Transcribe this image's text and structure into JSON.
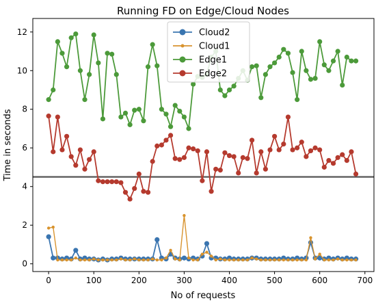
{
  "chart_data": {
    "type": "line",
    "title": "Running FD on Edge/Cloud Nodes",
    "xlabel": "No of requests",
    "ylabel": "Time in seconds",
    "xlim": [
      -35,
      720
    ],
    "ylim": [
      -0.4,
      12.7
    ],
    "xticks": [
      "0",
      "100",
      "200",
      "300",
      "400",
      "500",
      "600",
      "700"
    ],
    "yticks": [
      "0",
      "2",
      "4",
      "6",
      "8",
      "10",
      "12"
    ],
    "grid": false,
    "legend_position": "top-center",
    "x": [
      0,
      10,
      20,
      30,
      40,
      50,
      60,
      70,
      80,
      90,
      100,
      110,
      120,
      130,
      140,
      150,
      160,
      170,
      180,
      190,
      200,
      210,
      220,
      230,
      240,
      250,
      260,
      270,
      280,
      290,
      300,
      310,
      320,
      330,
      340,
      350,
      360,
      370,
      380,
      390,
      400,
      410,
      420,
      430,
      440,
      450,
      460,
      470,
      480,
      490,
      500,
      510,
      520,
      530,
      540,
      550,
      560,
      570,
      580,
      590,
      600,
      610,
      620,
      630,
      640,
      650,
      660,
      670,
      680
    ],
    "reference_line": {
      "y": 4.5,
      "color": "#555555"
    },
    "series": [
      {
        "name": "Cloud2",
        "color": "#3a75b0",
        "marker": "large",
        "values": [
          1.4,
          0.3,
          0.3,
          0.25,
          0.3,
          0.25,
          0.7,
          0.25,
          0.3,
          0.25,
          0.25,
          0.2,
          0.25,
          0.2,
          0.25,
          0.25,
          0.3,
          0.25,
          0.25,
          0.25,
          0.25,
          0.25,
          0.25,
          0.25,
          1.25,
          0.3,
          0.25,
          0.5,
          0.3,
          0.25,
          0.3,
          0.25,
          0.3,
          0.25,
          0.4,
          1.05,
          0.3,
          0.3,
          0.25,
          0.25,
          0.3,
          0.25,
          0.25,
          0.25,
          0.25,
          0.3,
          0.3,
          0.25,
          0.25,
          0.25,
          0.25,
          0.25,
          0.3,
          0.25,
          0.25,
          0.3,
          0.25,
          0.3,
          1.1,
          0.3,
          0.3,
          0.25,
          0.3,
          0.25,
          0.3,
          0.25,
          0.3,
          0.25,
          0.25
        ]
      },
      {
        "name": "Cloud1",
        "color": "#d8932e",
        "marker": "small",
        "values": [
          1.85,
          1.9,
          0.2,
          0.2,
          0.2,
          0.2,
          0.3,
          0.2,
          0.2,
          0.2,
          0.25,
          0.2,
          0.2,
          0.2,
          0.2,
          0.2,
          0.25,
          0.2,
          0.2,
          0.25,
          0.2,
          0.2,
          0.2,
          0.25,
          0.2,
          0.2,
          0.3,
          0.7,
          0.25,
          0.2,
          2.5,
          0.3,
          0.2,
          0.2,
          0.5,
          0.6,
          0.4,
          0.2,
          0.25,
          0.2,
          0.2,
          0.2,
          0.2,
          0.2,
          0.2,
          0.3,
          0.25,
          0.2,
          0.2,
          0.2,
          0.2,
          0.2,
          0.2,
          0.2,
          0.2,
          0.2,
          0.2,
          0.2,
          1.35,
          0.25,
          0.5,
          0.2,
          0.2,
          0.2,
          0.25,
          0.2,
          0.2,
          0.2,
          0.2
        ]
      },
      {
        "name": "Edge1",
        "color": "#4c9a3a",
        "marker": "large",
        "values": [
          8.5,
          9.0,
          11.5,
          10.9,
          10.2,
          11.7,
          11.9,
          10.0,
          8.5,
          9.8,
          11.85,
          10.4,
          7.5,
          10.9,
          10.85,
          9.8,
          7.6,
          7.8,
          7.2,
          7.95,
          8.0,
          7.4,
          10.2,
          11.35,
          10.25,
          8.0,
          7.75,
          7.1,
          8.2,
          7.9,
          7.6,
          7.0,
          9.3,
          9.7,
          9.65,
          9.8,
          10.7,
          11.0,
          9.0,
          8.7,
          9.0,
          9.2,
          9.6,
          10.0,
          9.5,
          10.2,
          10.25,
          8.6,
          9.8,
          10.2,
          10.4,
          10.7,
          11.1,
          10.9,
          9.9,
          8.5,
          11.0,
          10.0,
          9.55,
          9.6,
          11.5,
          10.3,
          10.0,
          10.5,
          11.0,
          9.25,
          10.7,
          10.5,
          10.5
        ]
      },
      {
        "name": "Edge2",
        "color": "#b53a2e",
        "marker": "large",
        "values": [
          7.65,
          5.8,
          7.6,
          5.9,
          6.6,
          5.55,
          5.1,
          5.9,
          4.9,
          5.4,
          5.8,
          4.3,
          4.25,
          4.25,
          4.25,
          4.25,
          4.2,
          3.7,
          3.35,
          3.9,
          4.65,
          3.75,
          3.7,
          5.3,
          6.1,
          6.15,
          6.4,
          6.65,
          5.45,
          5.4,
          5.5,
          6.0,
          5.95,
          5.85,
          4.3,
          5.8,
          3.75,
          4.9,
          4.85,
          5.75,
          5.6,
          5.55,
          4.7,
          5.5,
          5.45,
          6.4,
          4.7,
          5.8,
          4.9,
          5.9,
          6.6,
          5.9,
          6.2,
          7.6,
          5.9,
          6.0,
          6.3,
          5.55,
          5.85,
          6.0,
          5.9,
          5.0,
          5.35,
          5.2,
          5.5,
          5.65,
          5.35,
          5.8,
          4.65
        ]
      }
    ]
  }
}
